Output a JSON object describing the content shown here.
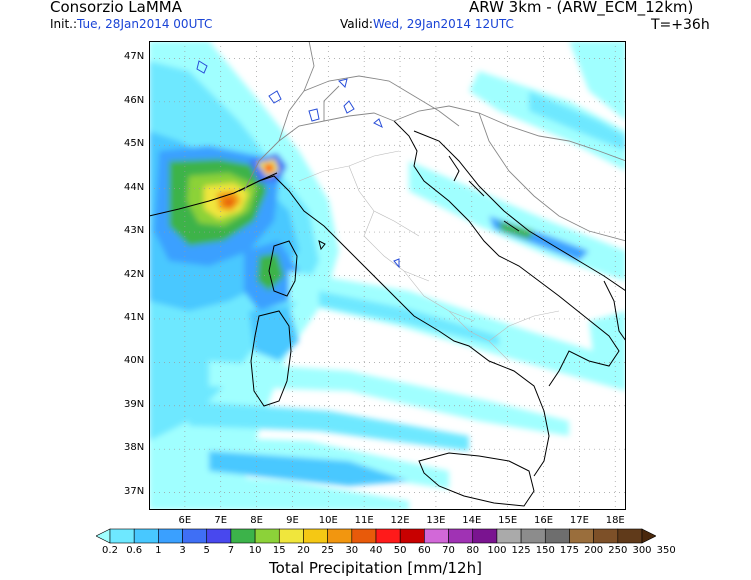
{
  "header": {
    "org": "Consorzio LaMMA",
    "model": "ARW 3km - (ARW_ECM_12km)",
    "init_label": "Init.:",
    "init_value": "Tue, 28Jan2014 00UTC",
    "valid_label": "Valid:",
    "valid_value": "Wed, 29Jan2014 12UTC",
    "step": "T=+36h"
  },
  "map": {
    "lat_labels": [
      "47N",
      "46N",
      "45N",
      "44N",
      "43N",
      "42N",
      "41N",
      "40N",
      "39N",
      "38N",
      "37N"
    ],
    "lon_labels": [
      "6E",
      "7E",
      "8E",
      "9E",
      "10E",
      "11E",
      "12E",
      "13E",
      "14E",
      "15E",
      "16E",
      "17E",
      "18E"
    ],
    "lat_range": [
      36.6,
      47.4
    ],
    "lon_range": [
      5.0,
      18.3
    ]
  },
  "colorbar": {
    "labels": [
      "0.2",
      "0.6",
      "1",
      "3",
      "5",
      "7",
      "10",
      "15",
      "20",
      "25",
      "30",
      "40",
      "50",
      "60",
      "70",
      "80",
      "100",
      "125",
      "150",
      "175",
      "200",
      "250",
      "300",
      "350"
    ],
    "colors": [
      "#a0ffff",
      "#6ee8ff",
      "#48c8ff",
      "#3aa0ff",
      "#3f6ff5",
      "#4848ee",
      "#3cb34a",
      "#8cd239",
      "#f0e63c",
      "#f5c814",
      "#f2960f",
      "#e85a0a",
      "#ff1a1a",
      "#c80000",
      "#d268d8",
      "#a032b4",
      "#7a1490",
      "#aaaaaa",
      "#8c8c8c",
      "#6e6e6e",
      "#9a6e3c",
      "#7d5028",
      "#603a1a",
      "#4a280c"
    ],
    "title": "Total Precipitation [mm/12h]"
  }
}
